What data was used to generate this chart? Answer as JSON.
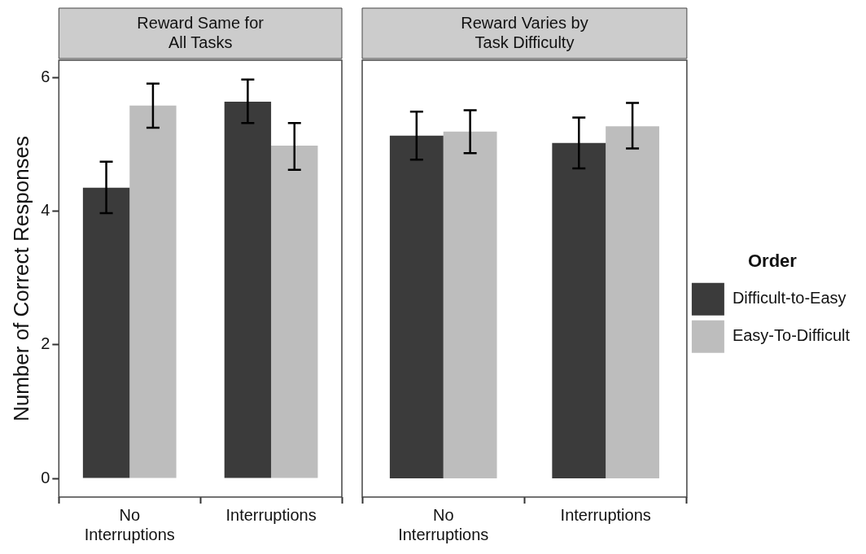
{
  "chart_data": [
    {
      "type": "bar",
      "title": "Reward Same for All Tasks",
      "ylabel": "Number of Correct Responses",
      "categories": [
        "No Interruptions",
        "Interruptions"
      ],
      "ylim": [
        -0.28,
        6.26
      ],
      "yticks": [
        0,
        2,
        4,
        6
      ],
      "grid": false,
      "legend": false,
      "series": [
        {
          "color": "#3b3b3b",
          "values": [
            4.35,
            5.64
          ],
          "errors": [
            [
              3.97,
              4.74
            ],
            [
              5.32,
              5.97
            ]
          ]
        },
        {
          "color": "#bdbdbd",
          "values": [
            5.58,
            4.98
          ],
          "errors": [
            [
              5.25,
              5.91
            ],
            [
              4.62,
              5.32
            ]
          ]
        }
      ]
    },
    {
      "type": "bar",
      "title": "Reward Varies by Task Difficulty",
      "categories": [
        "No Interruptions",
        "Interruptions"
      ],
      "ylim": [
        -0.28,
        6.26
      ],
      "yticks": [
        0,
        2,
        4,
        6
      ],
      "grid": false,
      "legend": "right",
      "legend_title": "Order",
      "tick_labels": "x",
      "series": [
        {
          "name": "Difficult-to-Easy",
          "color": "#3b3b3b",
          "values": [
            5.13,
            5.02
          ],
          "errors": [
            [
              4.77,
              5.49
            ],
            [
              4.64,
              5.4
            ]
          ]
        },
        {
          "name": "Easy-To-Difficult",
          "color": "#bdbdbd",
          "values": [
            5.19,
            5.27
          ],
          "errors": [
            [
              4.87,
              5.51
            ],
            [
              4.94,
              5.62
            ]
          ]
        }
      ]
    }
  ]
}
